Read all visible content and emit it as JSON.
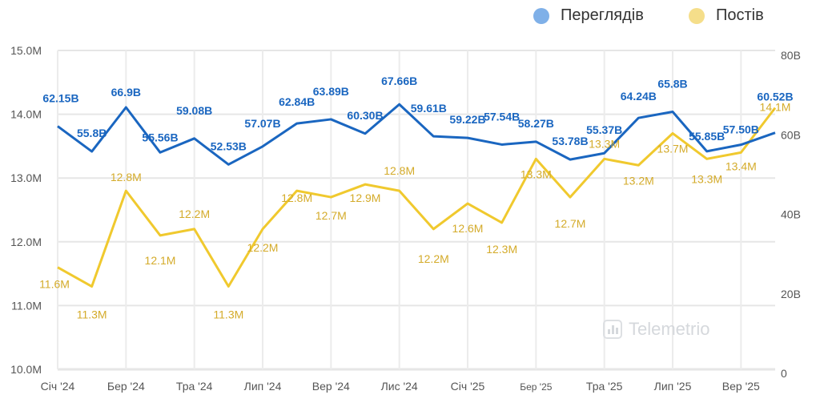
{
  "chart_data": {
    "type": "line",
    "x": [
      "2024-01",
      "2024-02",
      "2024-03",
      "2024-04",
      "2024-05",
      "2024-06",
      "2024-07",
      "2024-08",
      "2024-09",
      "2024-10",
      "2024-11",
      "2024-12",
      "2025-01",
      "2025-02",
      "2025-03",
      "2025-04",
      "2025-05",
      "2025-06",
      "2025-07",
      "2025-08",
      "2025-09",
      "2025-10"
    ],
    "xtick_labels": [
      "Січ '24",
      "Бер '24",
      "Тра '24",
      "Лип '24",
      "Вер '24",
      "Лис '24",
      "Січ '25",
      "Бер '25",
      "Тра '25",
      "Лип '25",
      "Вер '25"
    ],
    "left_axis": {
      "range": [
        10,
        15
      ],
      "tick_labels": [
        "15.0M",
        "14.0M",
        "13.0M",
        "12.0M",
        "11.0M",
        "10.0M"
      ]
    },
    "right_axis": {
      "range": [
        0,
        80
      ],
      "tick_labels": [
        "80B",
        "60B",
        "40B",
        "20B",
        "0"
      ]
    },
    "grid": true,
    "legend_position": "top-right",
    "series": [
      {
        "name": "Переглядів",
        "axis": "right",
        "color": "#1a66c0",
        "legend_color": "#7fb0e8",
        "values": [
          62.15,
          55.8,
          66.9,
          55.56,
          59.08,
          52.53,
          57.07,
          62.84,
          63.89,
          60.3,
          67.66,
          59.61,
          59.22,
          57.54,
          58.27,
          53.78,
          55.37,
          64.24,
          65.8,
          55.85,
          57.5,
          60.52
        ],
        "labels": [
          "62.15B",
          "55.8B",
          "66.9B",
          "55.56B",
          "59.08B",
          "52.53B",
          "57.07B",
          "62.84B",
          "63.89B",
          "60.30B",
          "67.66B",
          "59.61B",
          "59.22B",
          "57.54B",
          "58.27B",
          "53.78B",
          "55.37B",
          "64.24B",
          "65.8B",
          "55.85B",
          "57.50B",
          "60.52B"
        ]
      },
      {
        "name": "Постів",
        "axis": "left",
        "color": "#f0c92e",
        "label_color": "#d4ab2a",
        "legend_color": "#f5de8a",
        "values": [
          11.6,
          11.3,
          12.8,
          12.1,
          12.2,
          11.3,
          12.2,
          12.8,
          12.7,
          12.9,
          12.8,
          12.2,
          12.6,
          12.3,
          13.3,
          12.7,
          13.3,
          13.2,
          13.7,
          13.3,
          13.4,
          14.1
        ],
        "labels": [
          "11.6M",
          "11.3M",
          "12.8M",
          "12.1M",
          "12.2M",
          "11.3M",
          "12.2M",
          "12.8M",
          "12.7M",
          "12.9M",
          "12.8M",
          "12.2M",
          "12.6M",
          "12.3M",
          "13.3M",
          "12.7M",
          "13.3M",
          "13.2M",
          "13.7M",
          "13.3M",
          "13.4M",
          "14.1M"
        ]
      }
    ]
  },
  "watermark": "Telemetrio"
}
